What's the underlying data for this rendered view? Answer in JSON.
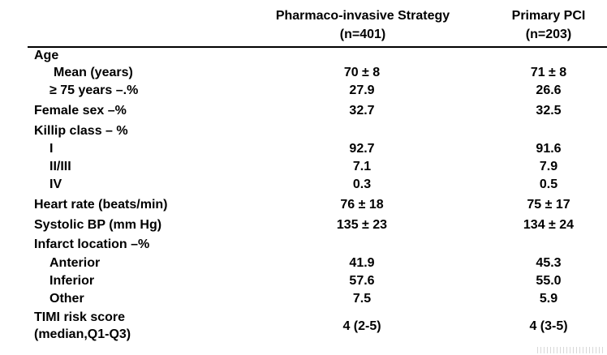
{
  "header": {
    "col1_line1": "Pharmaco-invasive Strategy",
    "col1_line2": "(n=401)",
    "col2_line1": "Primary PCI",
    "col2_line2": "(n=203)"
  },
  "rows": {
    "age": {
      "label": "Age"
    },
    "age_mean": {
      "label": "Mean  (years)",
      "pi": "70 ± 8",
      "pp": "71 ± 8"
    },
    "age_75": {
      "label": "≥ 75 years –.%",
      "pi": "27.9",
      "pp": "26.6"
    },
    "female": {
      "label": "Female sex –%",
      "pi": "32.7",
      "pp": "32.5"
    },
    "killip": {
      "label": "Killip class – %"
    },
    "killip_i": {
      "label": "I",
      "pi": "92.7",
      "pp": "91.6"
    },
    "killip_ii_iii": {
      "label": "II/III",
      "pi": "7.1",
      "pp": "7.9"
    },
    "killip_iv": {
      "label": "IV",
      "pi": "0.3",
      "pp": "0.5"
    },
    "heart_rate": {
      "label": "Heart rate (beats/min)",
      "pi": "76 ± 18",
      "pp": "75 ± 17"
    },
    "systolic_bp": {
      "label": "Systolic BP (mm Hg)",
      "pi": "135 ± 23",
      "pp": "134 ± 24"
    },
    "infarct": {
      "label": "Infarct location –%"
    },
    "anterior": {
      "label": "Anterior",
      "pi": "41.9",
      "pp": "45.3"
    },
    "inferior": {
      "label": "Inferior",
      "pi": "57.6",
      "pp": "55.0"
    },
    "other": {
      "label": "Other",
      "pi": "7.5",
      "pp": "5.9"
    },
    "timi": {
      "label_line1": "TIMI risk score",
      "label_line2": "(median,Q1-Q3)",
      "pi": "4 (2-5)",
      "pp": "4 (3-5)"
    }
  }
}
